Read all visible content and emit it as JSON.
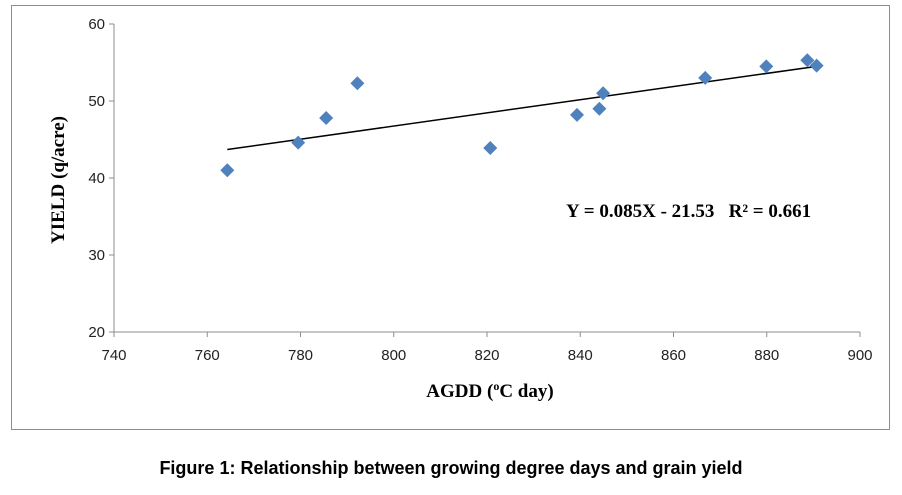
{
  "chart_data": {
    "type": "scatter",
    "xlabel": "AGDD (",
    "xlabel_sup": "o",
    "xlabel_tail": "C day)",
    "ylabel": "YIELD (q/acre)",
    "xlim": [
      740,
      900
    ],
    "ylim": [
      20,
      60
    ],
    "xticks": [
      740,
      760,
      780,
      800,
      820,
      840,
      860,
      880,
      900
    ],
    "yticks": [
      20,
      30,
      40,
      50,
      60
    ],
    "points": [
      {
        "x": 764.3,
        "y": 41.0
      },
      {
        "x": 779.5,
        "y": 44.6
      },
      {
        "x": 785.5,
        "y": 47.8
      },
      {
        "x": 792.2,
        "y": 52.3
      },
      {
        "x": 820.7,
        "y": 43.9
      },
      {
        "x": 839.3,
        "y": 48.2
      },
      {
        "x": 844.1,
        "y": 49.0
      },
      {
        "x": 844.9,
        "y": 51.0
      },
      {
        "x": 866.8,
        "y": 53.0
      },
      {
        "x": 879.9,
        "y": 54.5
      },
      {
        "x": 888.7,
        "y": 55.3
      },
      {
        "x": 890.7,
        "y": 54.6
      }
    ],
    "marker_color": "#4f81bd",
    "trendline": {
      "x": [
        764.3,
        890.7
      ],
      "y": [
        43.7,
        54.5
      ],
      "color": "#000000"
    },
    "equation": "Y = 0.085X - 21.53   R² = 0.661",
    "grid": false,
    "legend": "none"
  },
  "caption": "Figure 1: Relationship between growing degree days and grain yield"
}
